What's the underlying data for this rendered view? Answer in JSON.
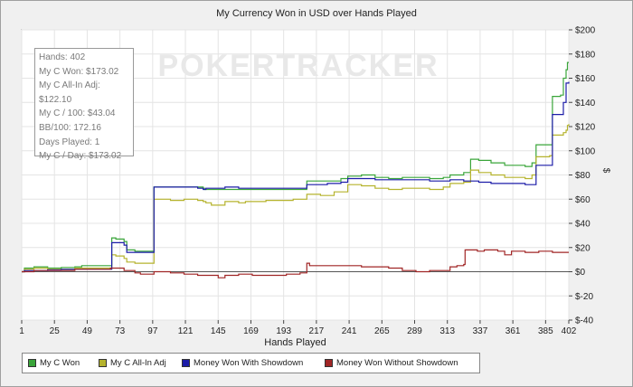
{
  "chart_data": {
    "type": "line",
    "title": "My Currency Won in USD over Hands Played",
    "xlabel": "Hands Played",
    "ylabel": "$",
    "xlim": [
      1,
      402
    ],
    "ylim": [
      -40,
      200
    ],
    "x_ticks": [
      1,
      25,
      49,
      73,
      97,
      121,
      145,
      169,
      193,
      217,
      241,
      265,
      289,
      313,
      337,
      361,
      385,
      402
    ],
    "y_ticks": [
      200,
      180,
      160,
      140,
      120,
      100,
      80,
      60,
      40,
      20,
      0,
      -20,
      -40
    ],
    "y_tick_labels": [
      "$200",
      "$180",
      "$160",
      "$140",
      "$120",
      "$100",
      "$80",
      "$60",
      "$40",
      "$20",
      "$0",
      "$-20",
      "$-40"
    ],
    "grid": true,
    "legend_position": "bottom",
    "watermark": "POKERTRACKER",
    "series": [
      {
        "name": "My C Won",
        "color": "#3aa53a",
        "points": [
          [
            1,
            0
          ],
          [
            3,
            3
          ],
          [
            10,
            4
          ],
          [
            20,
            3
          ],
          [
            30,
            3.5
          ],
          [
            40,
            4
          ],
          [
            45,
            5
          ],
          [
            50,
            5
          ],
          [
            60,
            5
          ],
          [
            66,
            5
          ],
          [
            67,
            28
          ],
          [
            70,
            27
          ],
          [
            76,
            25
          ],
          [
            78,
            18
          ],
          [
            84,
            17
          ],
          [
            88,
            17
          ],
          [
            98,
            70
          ],
          [
            110,
            70
          ],
          [
            130,
            70
          ],
          [
            134,
            69
          ],
          [
            135,
            68
          ],
          [
            150,
            68
          ],
          [
            160,
            68
          ],
          [
            165,
            68
          ],
          [
            180,
            68
          ],
          [
            200,
            68
          ],
          [
            209,
            68
          ],
          [
            210,
            75
          ],
          [
            225,
            75
          ],
          [
            235,
            77
          ],
          [
            240,
            79
          ],
          [
            250,
            80
          ],
          [
            260,
            78
          ],
          [
            270,
            77
          ],
          [
            280,
            78
          ],
          [
            300,
            77
          ],
          [
            310,
            78
          ],
          [
            315,
            80
          ],
          [
            325,
            82
          ],
          [
            330,
            93
          ],
          [
            336,
            92
          ],
          [
            345,
            90
          ],
          [
            355,
            88
          ],
          [
            370,
            87
          ],
          [
            375,
            90
          ],
          [
            376,
            90
          ],
          [
            378,
            105
          ],
          [
            388,
            105
          ],
          [
            390,
            145
          ],
          [
            396,
            146
          ],
          [
            398,
            160
          ],
          [
            400,
            167
          ],
          [
            401,
            173
          ],
          [
            402,
            173
          ]
        ]
      },
      {
        "name": "My C All-In Adj",
        "color": "#b5b32d",
        "points": [
          [
            1,
            0
          ],
          [
            3,
            2
          ],
          [
            10,
            3
          ],
          [
            20,
            2
          ],
          [
            30,
            2
          ],
          [
            40,
            3
          ],
          [
            50,
            3
          ],
          [
            60,
            3
          ],
          [
            66,
            3
          ],
          [
            67,
            14
          ],
          [
            70,
            13
          ],
          [
            76,
            11
          ],
          [
            78,
            8
          ],
          [
            84,
            7
          ],
          [
            88,
            7
          ],
          [
            98,
            60
          ],
          [
            110,
            59
          ],
          [
            120,
            60
          ],
          [
            130,
            59
          ],
          [
            134,
            58
          ],
          [
            136,
            57
          ],
          [
            140,
            55
          ],
          [
            150,
            58
          ],
          [
            160,
            57
          ],
          [
            165,
            58
          ],
          [
            180,
            59
          ],
          [
            200,
            60
          ],
          [
            209,
            60
          ],
          [
            210,
            64
          ],
          [
            220,
            63
          ],
          [
            230,
            66
          ],
          [
            240,
            72
          ],
          [
            250,
            71
          ],
          [
            260,
            69
          ],
          [
            270,
            68
          ],
          [
            280,
            69
          ],
          [
            300,
            68
          ],
          [
            310,
            70
          ],
          [
            315,
            73
          ],
          [
            325,
            74
          ],
          [
            330,
            84
          ],
          [
            336,
            82
          ],
          [
            345,
            80
          ],
          [
            355,
            78
          ],
          [
            370,
            77
          ],
          [
            375,
            80
          ],
          [
            376,
            80
          ],
          [
            378,
            95
          ],
          [
            388,
            96
          ],
          [
            390,
            113
          ],
          [
            396,
            113
          ],
          [
            398,
            115
          ],
          [
            400,
            117
          ],
          [
            401,
            121
          ],
          [
            402,
            122
          ]
        ]
      },
      {
        "name": "Money Won With Showdown",
        "color": "#1c1ca8",
        "points": [
          [
            1,
            0
          ],
          [
            3,
            1
          ],
          [
            10,
            1
          ],
          [
            20,
            1.5
          ],
          [
            30,
            2
          ],
          [
            40,
            2
          ],
          [
            50,
            2
          ],
          [
            60,
            2
          ],
          [
            66,
            2
          ],
          [
            67,
            24
          ],
          [
            70,
            24
          ],
          [
            76,
            22
          ],
          [
            78,
            16
          ],
          [
            84,
            16
          ],
          [
            88,
            16
          ],
          [
            98,
            70
          ],
          [
            110,
            70
          ],
          [
            130,
            69
          ],
          [
            134,
            68
          ],
          [
            136,
            69
          ],
          [
            150,
            70
          ],
          [
            160,
            69
          ],
          [
            180,
            69
          ],
          [
            200,
            69
          ],
          [
            209,
            69
          ],
          [
            210,
            72
          ],
          [
            225,
            73
          ],
          [
            235,
            74
          ],
          [
            240,
            77
          ],
          [
            250,
            77
          ],
          [
            260,
            76
          ],
          [
            270,
            76
          ],
          [
            280,
            76
          ],
          [
            300,
            75
          ],
          [
            310,
            75
          ],
          [
            315,
            76
          ],
          [
            325,
            75
          ],
          [
            330,
            75
          ],
          [
            336,
            74
          ],
          [
            345,
            73
          ],
          [
            355,
            73
          ],
          [
            370,
            72
          ],
          [
            375,
            72
          ],
          [
            376,
            72
          ],
          [
            378,
            88
          ],
          [
            388,
            88
          ],
          [
            390,
            130
          ],
          [
            396,
            130
          ],
          [
            398,
            140
          ],
          [
            400,
            156
          ],
          [
            402,
            157
          ]
        ]
      },
      {
        "name": "Money Won Without Showdown",
        "color": "#a02525",
        "points": [
          [
            1,
            0
          ],
          [
            10,
            1
          ],
          [
            20,
            1
          ],
          [
            30,
            1
          ],
          [
            40,
            2
          ],
          [
            50,
            2
          ],
          [
            60,
            2
          ],
          [
            66,
            3
          ],
          [
            67,
            3
          ],
          [
            70,
            3
          ],
          [
            76,
            1
          ],
          [
            84,
            -1
          ],
          [
            88,
            -2
          ],
          [
            98,
            0
          ],
          [
            110,
            -1
          ],
          [
            120,
            -2
          ],
          [
            130,
            -3
          ],
          [
            140,
            -3
          ],
          [
            145,
            -5
          ],
          [
            150,
            -3
          ],
          [
            160,
            -2
          ],
          [
            170,
            -3
          ],
          [
            180,
            -3
          ],
          [
            195,
            -2
          ],
          [
            200,
            -2
          ],
          [
            205,
            -1
          ],
          [
            209,
            -1
          ],
          [
            210,
            7
          ],
          [
            212,
            5
          ],
          [
            225,
            5
          ],
          [
            240,
            5
          ],
          [
            250,
            4
          ],
          [
            260,
            4
          ],
          [
            270,
            3
          ],
          [
            280,
            1
          ],
          [
            290,
            0
          ],
          [
            300,
            1
          ],
          [
            310,
            1
          ],
          [
            315,
            4
          ],
          [
            320,
            5
          ],
          [
            325,
            6
          ],
          [
            326,
            18
          ],
          [
            335,
            17
          ],
          [
            340,
            18
          ],
          [
            350,
            17
          ],
          [
            355,
            14
          ],
          [
            360,
            17
          ],
          [
            370,
            16
          ],
          [
            380,
            17
          ],
          [
            390,
            16
          ],
          [
            400,
            16
          ],
          [
            402,
            16
          ]
        ]
      }
    ]
  },
  "stats": {
    "hands": "Hands: 402",
    "my_c_won": "My C Won: $173.02",
    "all_in_adj": "My C All-In Adj: $122.10",
    "per_100": "My C / 100: $43.04",
    "bb_100": "BB/100: 172.16",
    "days_played": "Days Played: 1",
    "per_day": "My C / Day: $173.02"
  }
}
